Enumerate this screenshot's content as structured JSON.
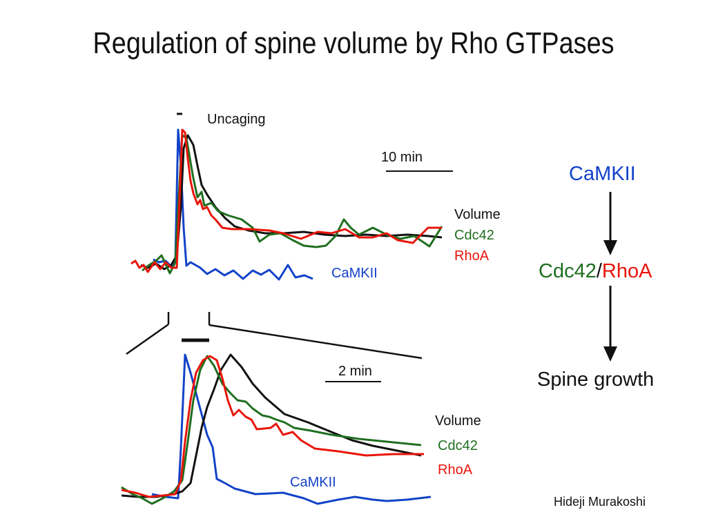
{
  "title": "Regulation of spine volume by Rho GTPases",
  "colors": {
    "volume": "#111111",
    "cdc42": "#1f6e1f",
    "rhoa": "#e8140a",
    "camkii": "#1242c8"
  },
  "top_panel": {
    "stimulus_label": "Uncaging",
    "scale_bar_label": "10 min",
    "labels": {
      "volume": "Volume",
      "cdc42": "Cdc42",
      "rhoa": "RhoA",
      "camkii": "CaMKII"
    }
  },
  "bottom_panel": {
    "scale_bar_label": "2 min",
    "labels": {
      "volume": "Volume",
      "cdc42": "Cdc42",
      "rhoa": "RhoA",
      "camkii": "CaMKII"
    }
  },
  "pathway": {
    "top": "CaMKII",
    "middle_left": "Cdc42",
    "middle_sep": "/",
    "middle_right": "RhoA",
    "bottom": "Spine growth"
  },
  "author": "Hideji Murakoshi"
}
